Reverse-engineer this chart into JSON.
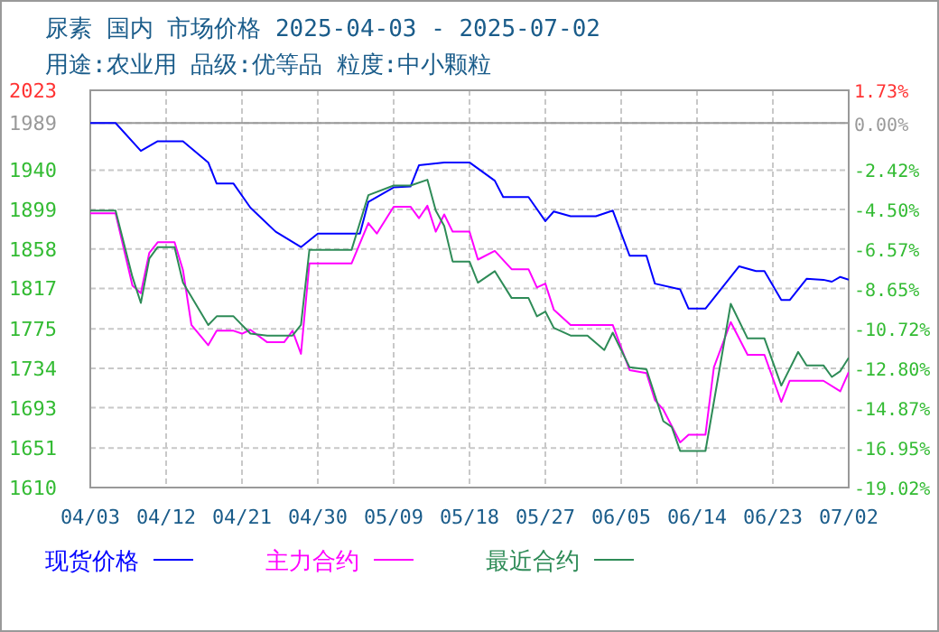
{
  "chart_data": {
    "type": "line",
    "title": "尿素 国内 市场价格 2025-04-03 - 2025-07-02",
    "subtitle": "用途:农业用 品级:优等品 粒度:中小颗粒",
    "xlim": [
      "2025-04-03",
      "2025-07-02"
    ],
    "xticks": [
      {
        "value": "2025-04-03",
        "label": "04/03"
      },
      {
        "value": "2025-04-12",
        "label": "04/12"
      },
      {
        "value": "2025-04-21",
        "label": "04/21"
      },
      {
        "value": "2025-04-30",
        "label": "04/30"
      },
      {
        "value": "2025-05-09",
        "label": "05/09"
      },
      {
        "value": "2025-05-18",
        "label": "05/18"
      },
      {
        "value": "2025-05-27",
        "label": "05/27"
      },
      {
        "value": "2025-06-05",
        "label": "06/05"
      },
      {
        "value": "2025-06-14",
        "label": "06/14"
      },
      {
        "value": "2025-06-23",
        "label": "06/23"
      },
      {
        "value": "2025-07-02",
        "label": "07/02"
      }
    ],
    "ylim": [
      1610,
      2023
    ],
    "yticks": [
      1610,
      1651,
      1693,
      1734,
      1775,
      1817,
      1858,
      1899,
      1940,
      1989,
      2023
    ],
    "y2lim": [
      -19.02,
      1.73
    ],
    "y2ticks": [
      {
        "value": -19.02,
        "label": "-19.02%"
      },
      {
        "value": -16.95,
        "label": "-16.95%"
      },
      {
        "value": -14.87,
        "label": "-14.87%"
      },
      {
        "value": -12.8,
        "label": "-12.80%"
      },
      {
        "value": -10.72,
        "label": "-10.72%"
      },
      {
        "value": -8.65,
        "label": "-8.65%"
      },
      {
        "value": -6.57,
        "label": "-6.57%"
      },
      {
        "value": -4.5,
        "label": "-4.50%"
      },
      {
        "value": -2.42,
        "label": "-2.42%"
      },
      {
        "value": 0,
        "label": "0.00%"
      },
      {
        "value": 1.73,
        "label": "1.73%"
      }
    ],
    "ref_lines": [
      {
        "axis": "y",
        "value": 1989,
        "color": "#999999"
      }
    ],
    "grid": true,
    "legend": "bottom",
    "line_style": "solid",
    "series": [
      {
        "name": "现货价格",
        "color": "#0000ff",
        "x": [
          "2025-04-03",
          "2025-04-06",
          "2025-04-09",
          "2025-04-11",
          "2025-04-14",
          "2025-04-17",
          "2025-04-18",
          "2025-04-20",
          "2025-04-22",
          "2025-04-25",
          "2025-04-28",
          "2025-04-30",
          "2025-05-05",
          "2025-05-06",
          "2025-05-09",
          "2025-05-11",
          "2025-05-12",
          "2025-05-15",
          "2025-05-18",
          "2025-05-21",
          "2025-05-22",
          "2025-05-25",
          "2025-05-27",
          "2025-05-28",
          "2025-05-30",
          "2025-06-02",
          "2025-06-04",
          "2025-06-06",
          "2025-06-08",
          "2025-06-09",
          "2025-06-12",
          "2025-06-13",
          "2025-06-15",
          "2025-06-19",
          "2025-06-21",
          "2025-06-22",
          "2025-06-24",
          "2025-06-25",
          "2025-06-27",
          "2025-06-29",
          "2025-06-30",
          "2025-07-01",
          "2025-07-02"
        ],
        "values": [
          1989,
          1989,
          1960,
          1970,
          1970,
          1948,
          1926,
          1926,
          1901,
          1876,
          1860,
          1874,
          1874,
          1907,
          1922,
          1923,
          1945,
          1948,
          1948,
          1929,
          1912,
          1912,
          1887,
          1897,
          1892,
          1892,
          1898,
          1851,
          1851,
          1822,
          1816,
          1796,
          1796,
          1840,
          1835,
          1835,
          1805,
          1805,
          1827,
          1826,
          1824,
          1829,
          1826
        ]
      },
      {
        "name": "主力合约",
        "color": "#ff00ff",
        "x": [
          "2025-04-03",
          "2025-04-06",
          "2025-04-08",
          "2025-04-09",
          "2025-04-10",
          "2025-04-11",
          "2025-04-13",
          "2025-04-14",
          "2025-04-15",
          "2025-04-17",
          "2025-04-18",
          "2025-04-20",
          "2025-04-21",
          "2025-04-22",
          "2025-04-24",
          "2025-04-26",
          "2025-04-27",
          "2025-04-28",
          "2025-04-29",
          "2025-05-04",
          "2025-05-06",
          "2025-05-07",
          "2025-05-09",
          "2025-05-11",
          "2025-05-12",
          "2025-05-13",
          "2025-05-14",
          "2025-05-15",
          "2025-05-16",
          "2025-05-18",
          "2025-05-19",
          "2025-05-21",
          "2025-05-23",
          "2025-05-25",
          "2025-05-26",
          "2025-05-27",
          "2025-05-28",
          "2025-05-30",
          "2025-06-04",
          "2025-06-06",
          "2025-06-08",
          "2025-06-09",
          "2025-06-10",
          "2025-06-12",
          "2025-06-13",
          "2025-06-15",
          "2025-06-16",
          "2025-06-18",
          "2025-06-20",
          "2025-06-22",
          "2025-06-24",
          "2025-06-25",
          "2025-06-29",
          "2025-07-01",
          "2025-07-02"
        ],
        "values": [
          1895,
          1895,
          1820,
          1812,
          1854,
          1865,
          1865,
          1836,
          1779,
          1758,
          1773,
          1773,
          1770,
          1774,
          1761,
          1761,
          1773,
          1749,
          1843,
          1843,
          1885,
          1874,
          1902,
          1902,
          1890,
          1903,
          1876,
          1894,
          1876,
          1876,
          1847,
          1856,
          1837,
          1837,
          1818,
          1822,
          1795,
          1779,
          1779,
          1732,
          1729,
          1701,
          1691,
          1657,
          1665,
          1665,
          1735,
          1782,
          1748,
          1748,
          1699,
          1721,
          1721,
          1710,
          1730
        ]
      },
      {
        "name": "最近合约",
        "color": "#2e8b57",
        "x": [
          "2025-04-03",
          "2025-04-06",
          "2025-04-08",
          "2025-04-09",
          "2025-04-10",
          "2025-04-11",
          "2025-04-13",
          "2025-04-14",
          "2025-04-17",
          "2025-04-18",
          "2025-04-20",
          "2025-04-22",
          "2025-04-24",
          "2025-04-27",
          "2025-04-28",
          "2025-04-29",
          "2025-05-04",
          "2025-05-06",
          "2025-05-09",
          "2025-05-11",
          "2025-05-13",
          "2025-05-14",
          "2025-05-15",
          "2025-05-16",
          "2025-05-18",
          "2025-05-19",
          "2025-05-21",
          "2025-05-23",
          "2025-05-25",
          "2025-05-26",
          "2025-05-27",
          "2025-05-28",
          "2025-05-30",
          "2025-06-01",
          "2025-06-03",
          "2025-06-04",
          "2025-06-06",
          "2025-06-08",
          "2025-06-10",
          "2025-06-11",
          "2025-06-12",
          "2025-06-15",
          "2025-06-18",
          "2025-06-20",
          "2025-06-22",
          "2025-06-24",
          "2025-06-26",
          "2025-06-27",
          "2025-06-29",
          "2025-06-30",
          "2025-07-01",
          "2025-07-02"
        ],
        "values": [
          1898,
          1898,
          1829,
          1802,
          1848,
          1860,
          1860,
          1823,
          1779,
          1788,
          1788,
          1770,
          1768,
          1768,
          1779,
          1857,
          1857,
          1914,
          1924,
          1924,
          1930,
          1898,
          1882,
          1845,
          1845,
          1823,
          1835,
          1807,
          1807,
          1788,
          1793,
          1776,
          1768,
          1768,
          1753,
          1771,
          1735,
          1733,
          1679,
          1673,
          1648,
          1648,
          1801,
          1765,
          1765,
          1716,
          1751,
          1737,
          1737,
          1725,
          1731,
          1745
        ]
      }
    ]
  }
}
